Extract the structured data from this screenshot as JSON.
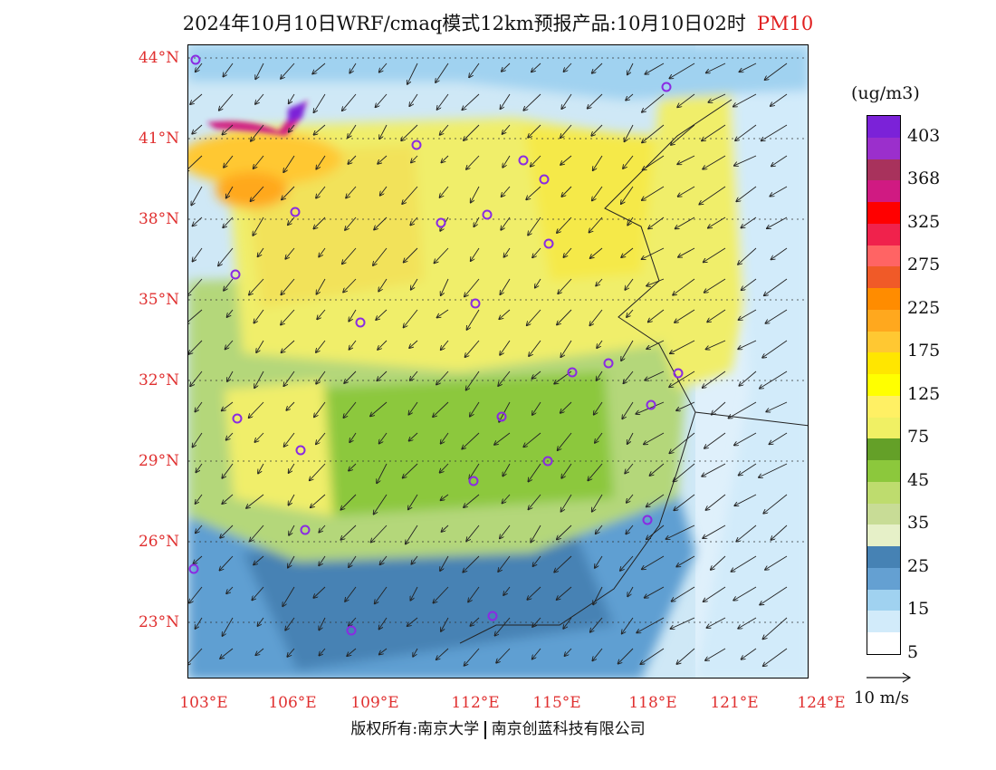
{
  "title": {
    "main": "2024年10月10日WRF/cmaq模式12km预报产品:10月10日02时",
    "pollutant": "PM10"
  },
  "colors": {
    "lat_lon_labels": "#e03030",
    "title_pollutant": "#e02020",
    "city_marker": "#8a2be2"
  },
  "axes": {
    "latitudes": [
      "44°N",
      "41°N",
      "38°N",
      "35°N",
      "32°N",
      "29°N",
      "26°N",
      "23°N"
    ],
    "longitudes": [
      "103°E",
      "106°E",
      "109°E",
      "112°E",
      "115°E",
      "118°E",
      "121°E",
      "124°E"
    ]
  },
  "legend": {
    "unit": "(ug/m3)",
    "labels": [
      "403",
      "368",
      "325",
      "275",
      "225",
      "175",
      "125",
      "75",
      "45",
      "35",
      "25",
      "15",
      "5"
    ],
    "colors_top_to_bottom": [
      "#7b22d8",
      "#9b2fcc",
      "#a8325c",
      "#d01a82",
      "#ff0000",
      "#f0224c",
      "#ff6464",
      "#f05a28",
      "#ff8c00",
      "#ffa81e",
      "#ffc832",
      "#ffe600",
      "#ffff00",
      "#fff064",
      "#f0f064",
      "#64a028",
      "#8cc83c",
      "#bedc6e",
      "#c8dc96",
      "#e6f0c8",
      "#4682b4",
      "#64a0d2",
      "#a0d2f0",
      "#d2ebfa",
      "#ffffff"
    ],
    "wind_reference": "10 m/s"
  },
  "footer": {
    "copyright": "版权所有:南京大学",
    "company": "南京创蓝科技有限公司"
  },
  "map_data": {
    "region": "Eastern and Southern China",
    "pm10_peak_area": "Inner Mongolia / Ningxia (top-left)",
    "city_marker_count": 24
  }
}
